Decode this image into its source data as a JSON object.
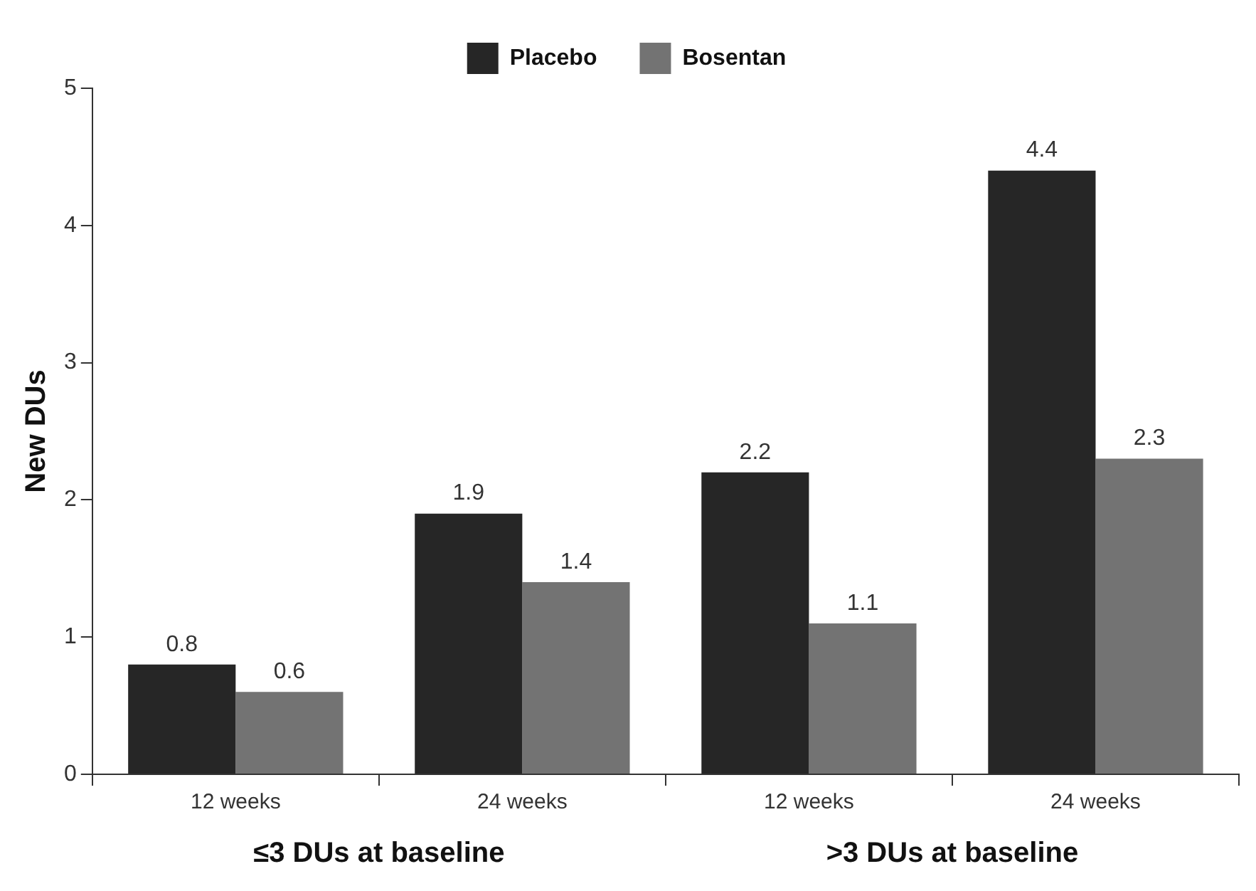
{
  "chart_data": {
    "type": "bar",
    "ylabel": "New DUs",
    "categories": [
      "12 weeks",
      "24 weeks",
      "12 weeks",
      "24 weeks"
    ],
    "series": [
      {
        "name": "Placebo",
        "color": "#262626",
        "values": [
          0.8,
          1.9,
          2.2,
          4.4
        ]
      },
      {
        "name": "Bosentan",
        "color": "#737373",
        "values": [
          0.6,
          1.4,
          1.1,
          2.3
        ]
      }
    ],
    "ylim": [
      0,
      5
    ],
    "yticks": [
      0,
      1,
      2,
      3,
      4,
      5
    ],
    "grid": false,
    "legend": "top",
    "data_labels": true,
    "annotations": [
      "≤3 DUs at baseline",
      ">3 DUs at baseline"
    ]
  }
}
